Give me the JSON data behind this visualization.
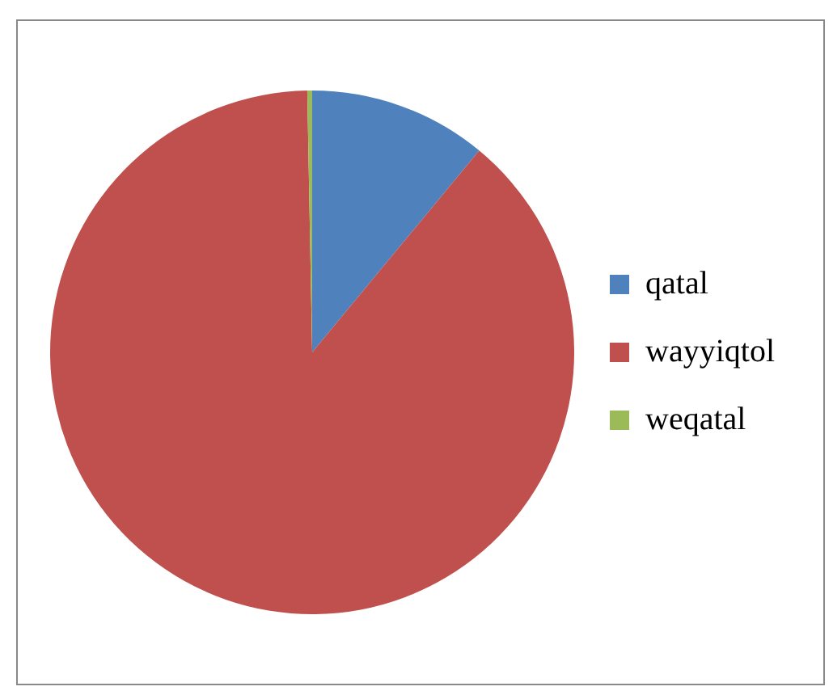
{
  "chart_data": {
    "type": "pie",
    "categories": [
      "qatal",
      "wayyiqtol",
      "weqatal"
    ],
    "values": [
      11,
      88.7,
      0.3
    ],
    "colors": [
      "#4f81bd",
      "#c0504d",
      "#9bbb59"
    ],
    "legend": "right"
  }
}
